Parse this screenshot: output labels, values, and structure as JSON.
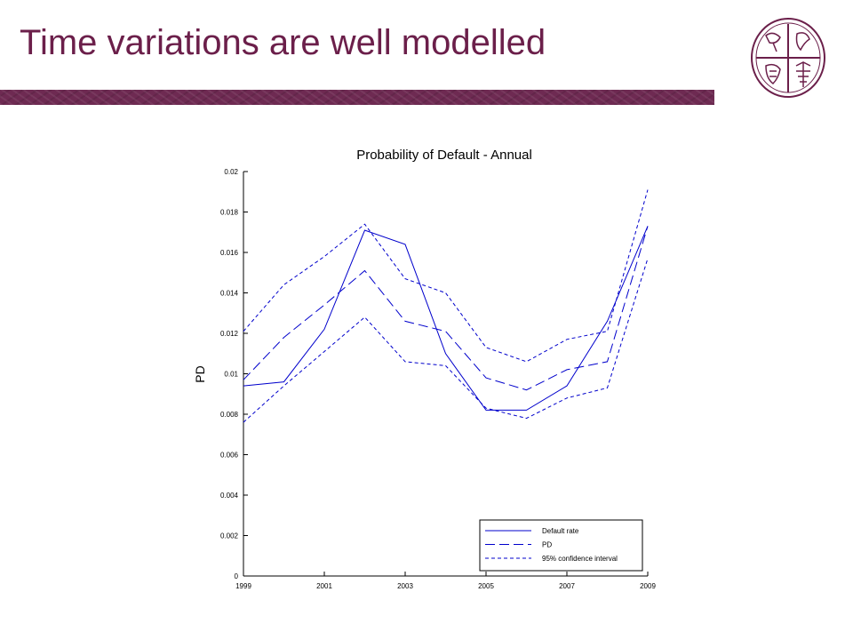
{
  "slide": {
    "title": "Time variations are well modelled"
  },
  "colors": {
    "title": "#6b1f4a",
    "band": "#6e2a52",
    "series": "#0000cc"
  },
  "icons": {
    "logo": "university-seal-icon"
  },
  "chart_data": {
    "type": "line",
    "title": "Probability of Default - Annual",
    "xlabel": "",
    "ylabel": "PD",
    "xlim": [
      1999,
      2009
    ],
    "ylim": [
      0,
      0.02
    ],
    "x": [
      1999,
      2000,
      2001,
      2002,
      2003,
      2004,
      2005,
      2006,
      2007,
      2008,
      2009
    ],
    "x_ticks": [
      "1999",
      "2001",
      "2003",
      "2005",
      "2007",
      "2009"
    ],
    "y_ticks": [
      "0",
      "0.002",
      "0.004",
      "0.006",
      "0.008",
      "0.01",
      "0.012",
      "0.014",
      "0.016",
      "0.018",
      "0.02"
    ],
    "grid": false,
    "legend_position": "bottom-right",
    "series": [
      {
        "name": "Default rate",
        "style": "solid",
        "values": [
          0.0094,
          0.0096,
          0.0122,
          0.0171,
          0.0164,
          0.011,
          0.0082,
          0.0082,
          0.0094,
          0.0126,
          0.0173
        ]
      },
      {
        "name": "PD",
        "style": "dashed",
        "values": [
          0.0097,
          0.0118,
          0.0134,
          0.0151,
          0.0126,
          0.0121,
          0.0098,
          0.0092,
          0.0102,
          0.0106,
          0.0173
        ]
      },
      {
        "name": "95% confidence interval",
        "style": "dashdot",
        "values": [
          0.0121,
          0.0144,
          0.0158,
          0.0174,
          0.0147,
          0.014,
          0.0113,
          0.0106,
          0.0117,
          0.0121,
          0.0191
        ]
      },
      {
        "name": "",
        "style": "dashdot",
        "values": [
          0.0076,
          0.0094,
          0.0111,
          0.0128,
          0.0106,
          0.0104,
          0.0083,
          0.0078,
          0.0088,
          0.0093,
          0.0157
        ]
      }
    ]
  }
}
